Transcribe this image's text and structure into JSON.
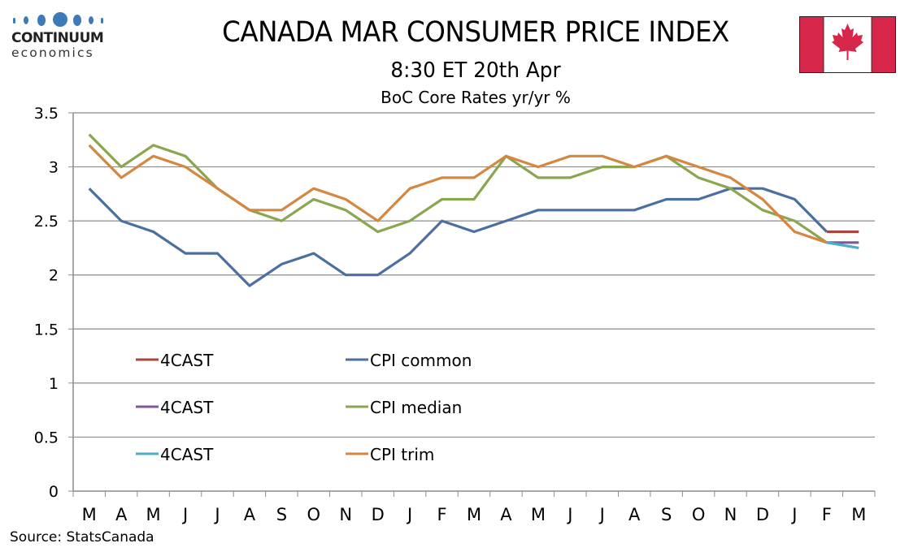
{
  "header": {
    "logo_brand": "CONTINUUM",
    "logo_sub": "economics",
    "title": "CANADA MAR CONSUMER PRICE INDEX",
    "subtitle": "8:30 ET 20th Apr",
    "flag": "canada-flag"
  },
  "footer": {
    "source": "Source: StatsCanada"
  },
  "chart_data": {
    "type": "line",
    "title": "BoC Core Rates yr/yr %",
    "xlabel": "",
    "ylabel": "",
    "categories": [
      "M",
      "A",
      "M",
      "J",
      "J",
      "A",
      "S",
      "O",
      "N",
      "D",
      "J",
      "F",
      "M",
      "A",
      "M",
      "J",
      "J",
      "A",
      "S",
      "O",
      "N",
      "D",
      "J",
      "F",
      "M"
    ],
    "ylim": [
      0,
      3.5
    ],
    "yticks": [
      0,
      0.5,
      1,
      1.5,
      2,
      2.5,
      3,
      3.5
    ],
    "ytick_labels": [
      "0",
      "0.5",
      "1",
      "1.5",
      "2",
      "2.5",
      "3",
      "3.5"
    ],
    "grid": true,
    "legend_position": "lower-left inside",
    "series": [
      {
        "name": "4CAST",
        "color": "#a9443f",
        "values": [
          null,
          null,
          null,
          null,
          null,
          null,
          null,
          null,
          null,
          null,
          null,
          null,
          null,
          null,
          null,
          null,
          null,
          null,
          null,
          null,
          null,
          null,
          null,
          2.4,
          2.4
        ]
      },
      {
        "name": "CPI common",
        "color": "#4a6fa0",
        "values": [
          2.8,
          2.5,
          2.4,
          2.2,
          2.2,
          1.9,
          2.1,
          2.2,
          2.0,
          2.0,
          2.2,
          2.5,
          2.4,
          2.5,
          2.6,
          2.6,
          2.6,
          2.6,
          2.7,
          2.7,
          2.8,
          2.8,
          2.7,
          2.4,
          null
        ]
      },
      {
        "name": "4CAST",
        "color": "#7b5a96",
        "values": [
          null,
          null,
          null,
          null,
          null,
          null,
          null,
          null,
          null,
          null,
          null,
          null,
          null,
          null,
          null,
          null,
          null,
          null,
          null,
          null,
          null,
          null,
          null,
          2.3,
          2.3
        ]
      },
      {
        "name": "CPI median",
        "color": "#8aa64f",
        "values": [
          3.3,
          3.0,
          3.2,
          3.1,
          2.8,
          2.6,
          2.5,
          2.7,
          2.6,
          2.4,
          2.5,
          2.7,
          2.7,
          3.1,
          2.9,
          2.9,
          3.0,
          3.0,
          3.1,
          2.9,
          2.8,
          2.6,
          2.5,
          2.3,
          null
        ]
      },
      {
        "name": "4CAST",
        "color": "#4aaec6",
        "values": [
          null,
          null,
          null,
          null,
          null,
          null,
          null,
          null,
          null,
          null,
          null,
          null,
          null,
          null,
          null,
          null,
          null,
          null,
          null,
          null,
          null,
          null,
          null,
          2.3,
          2.25
        ]
      },
      {
        "name": "CPI trim",
        "color": "#d5873f",
        "values": [
          3.2,
          2.9,
          3.1,
          3.0,
          2.8,
          2.6,
          2.6,
          2.8,
          2.7,
          2.5,
          2.8,
          2.9,
          2.9,
          3.1,
          3.0,
          3.1,
          3.1,
          3.0,
          3.1,
          3.0,
          2.9,
          2.7,
          2.4,
          2.3,
          null
        ]
      }
    ]
  }
}
